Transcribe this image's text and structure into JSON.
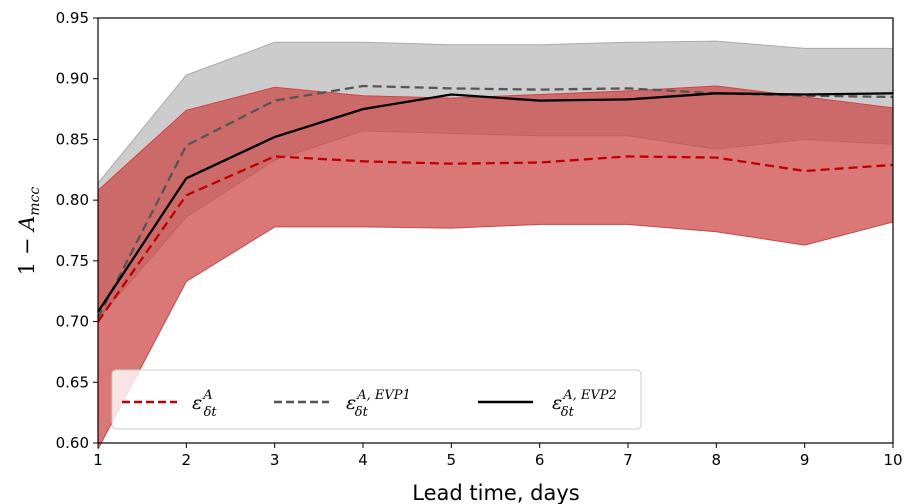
{
  "chart_data": {
    "type": "line",
    "title": "",
    "xlabel": "Lead time, days",
    "ylabel": "1 − A_mcc",
    "xlim": [
      1,
      10
    ],
    "ylim": [
      0.6,
      0.95
    ],
    "x": [
      1,
      2,
      3,
      4,
      5,
      6,
      7,
      8,
      9,
      10
    ],
    "xticks": [
      "1",
      "2",
      "3",
      "4",
      "5",
      "6",
      "7",
      "8",
      "9",
      "10"
    ],
    "yticks": [
      "0.60",
      "0.65",
      "0.70",
      "0.75",
      "0.80",
      "0.85",
      "0.90",
      "0.95"
    ],
    "grid": false,
    "legend_position": "lower-left",
    "series": [
      {
        "name": "ε_δt^A",
        "color": "#c00000",
        "band_color": "#cc4444",
        "line_style": "dashed",
        "values": [
          0.7,
          0.804,
          0.836,
          0.832,
          0.83,
          0.831,
          0.836,
          0.835,
          0.824,
          0.829
        ],
        "band_lower": [
          0.595,
          0.733,
          0.778,
          0.778,
          0.777,
          0.78,
          0.78,
          0.774,
          0.763,
          0.782
        ],
        "band_upper": [
          0.808,
          0.874,
          0.893,
          0.886,
          0.884,
          0.887,
          0.89,
          0.894,
          0.885,
          0.876
        ]
      },
      {
        "name": "ε_δt^{A, EVP1}",
        "color": "#555555",
        "band_color": "#aaaaaa",
        "line_style": "dashed",
        "values": [
          0.703,
          0.845,
          0.882,
          0.894,
          0.892,
          0.891,
          0.892,
          0.888,
          0.886,
          0.885
        ],
        "band_lower": [
          0.702,
          0.786,
          0.833,
          0.857,
          0.855,
          0.853,
          0.853,
          0.842,
          0.85,
          0.846
        ],
        "band_upper": [
          0.814,
          0.903,
          0.93,
          0.93,
          0.928,
          0.928,
          0.93,
          0.931,
          0.925,
          0.925
        ]
      },
      {
        "name": "ε_δt^{A, EVP2}",
        "color": "#000000",
        "line_style": "solid",
        "values": [
          0.708,
          0.818,
          0.852,
          0.875,
          0.887,
          0.882,
          0.883,
          0.888,
          0.887,
          0.888
        ]
      }
    ]
  }
}
